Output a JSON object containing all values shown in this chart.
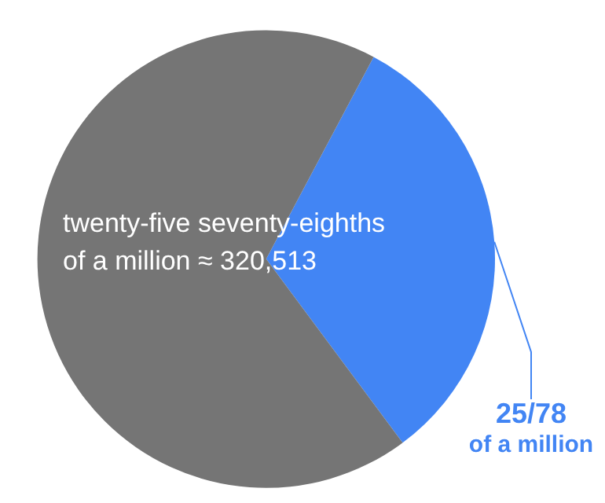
{
  "chart_data": {
    "type": "pie",
    "categories": [
      "25/78 of a million",
      null
    ],
    "values": [
      32.05,
      67.95
    ],
    "colors": [
      "#4285f4",
      "#757575"
    ],
    "annotations": [
      "twenty-five seventy-eighths of a million ≈ 320,513"
    ],
    "legend": false
  }
}
